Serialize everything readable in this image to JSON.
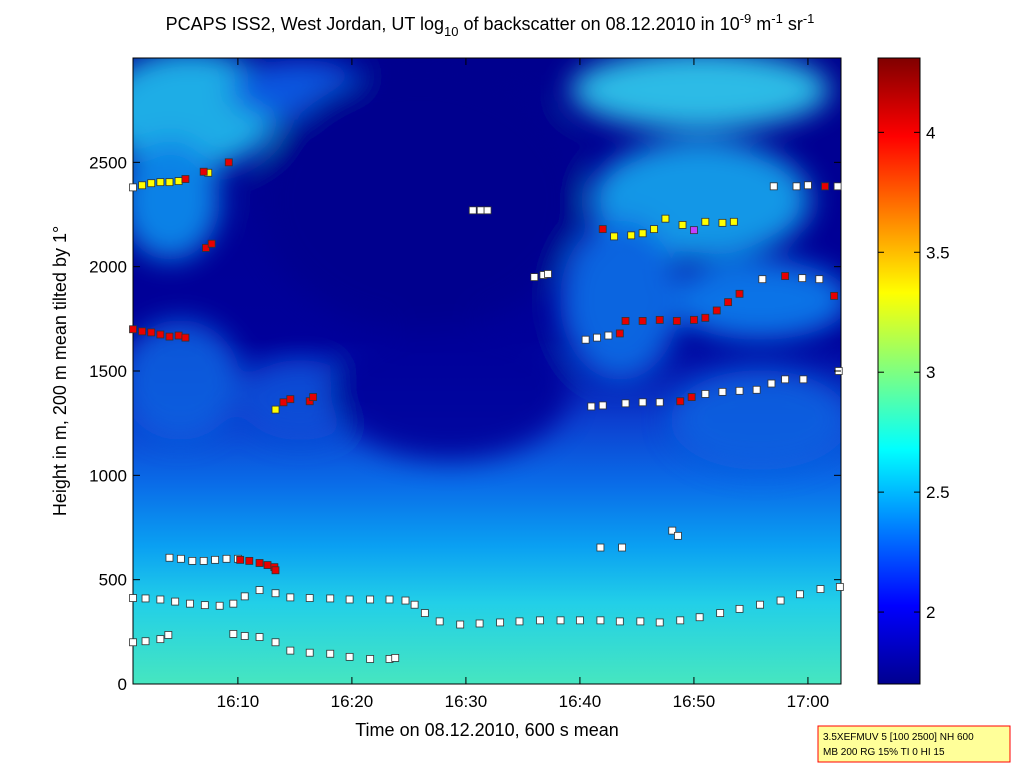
{
  "chart_data": {
    "type": "scatter",
    "title": [
      {
        "text": "PCAPS ISS2, West Jordan, UT log",
        "pos": "normal"
      },
      {
        "text": "10",
        "pos": "sub"
      },
      {
        "text": " of backscatter on 08.12.2010 in 10",
        "pos": "normal"
      },
      {
        "text": "-9",
        "pos": "sup"
      },
      {
        "text": " m",
        "pos": "normal"
      },
      {
        "text": "-1",
        "pos": "sup"
      },
      {
        "text": " sr",
        "pos": "normal"
      },
      {
        "text": "-1",
        "pos": "sup"
      }
    ],
    "xlabel": "Time on 08.12.2010, 600 s mean",
    "ylabel": "Height in m, 200 m mean tilted by 1°",
    "xlim": [
      960.8,
      1022.9
    ],
    "xticks": [
      {
        "value": 970,
        "label": "16:10"
      },
      {
        "value": 980,
        "label": "16:20"
      },
      {
        "value": 990,
        "label": "16:30"
      },
      {
        "value": 1000,
        "label": "16:40"
      },
      {
        "value": 1010,
        "label": "16:50"
      },
      {
        "value": 1020,
        "label": "17:00"
      }
    ],
    "ylim": [
      0,
      3000
    ],
    "yticks": [
      0,
      500,
      1000,
      1500,
      2000,
      2500
    ],
    "colorbar": {
      "colormap": "jet",
      "lim": [
        1.7,
        4.31
      ],
      "ticks": [
        2,
        2.5,
        3,
        3.5,
        4
      ]
    },
    "series": [
      {
        "color": "#ffffff",
        "x": [
          960.8,
          961.9,
          963.2,
          964.5,
          965.8,
          967.1,
          968.4,
          969.6,
          970.6,
          971.9,
          973.3,
          974.6,
          976.3,
          978.1,
          979.8,
          981.6,
          983.3,
          984.7,
          985.5,
          986.4,
          987.7,
          989.5,
          991.2,
          993.0,
          994.7,
          996.5,
          998.3,
          1000.0,
          1001.8,
          1003.5,
          1005.3,
          1007.0,
          1008.8,
          1010.5,
          1012.3,
          1014.0,
          1015.8,
          1017.6,
          1019.3,
          1021.1,
          1022.8,
          960.8,
          961.9,
          963.2,
          963.9,
          969.6,
          970.6,
          971.9,
          973.3,
          974.6,
          976.3,
          978.1,
          979.8,
          981.6,
          983.3,
          983.8,
          964.0,
          965.0,
          966.0,
          967.0,
          968.0,
          969.0,
          970.0,
          960.8,
          990.6,
          991.3,
          991.9,
          996.0,
          996.8,
          997.2,
          1001.0,
          1002.0,
          1004.0,
          1005.5,
          1007.0,
          1011.0,
          1012.5,
          1014.0,
          1015.5,
          1016.8,
          1018.0,
          1019.6,
          1000.5,
          1001.5,
          1002.5,
          1016.0,
          1019.5,
          1021.0,
          1017.0,
          1019.0,
          1020.0,
          1022.6,
          1001.8,
          1003.7,
          1008.1,
          1008.6,
          1022.7
        ],
        "y": [
          412,
          410,
          405,
          395,
          385,
          378,
          375,
          385,
          420,
          450,
          435,
          415,
          412,
          410,
          405,
          405,
          405,
          400,
          380,
          340,
          300,
          285,
          290,
          295,
          300,
          305,
          305,
          305,
          305,
          300,
          300,
          295,
          305,
          320,
          340,
          360,
          380,
          400,
          430,
          455,
          465,
          200,
          205,
          215,
          235,
          240,
          230,
          225,
          200,
          160,
          150,
          145,
          130,
          120,
          120,
          125,
          605,
          600,
          590,
          590,
          595,
          600,
          600,
          2380,
          2270,
          2270,
          2270,
          1950,
          1960,
          1965,
          1330,
          1335,
          1345,
          1350,
          1350,
          1390,
          1400,
          1405,
          1410,
          1440,
          1460,
          1460,
          1650,
          1660,
          1670,
          1940,
          1945,
          1940,
          2385,
          2385,
          2390,
          2385,
          654,
          654,
          735,
          710,
          1500
        ]
      },
      {
        "color": "#ffff00",
        "x": [
          961.6,
          962.4,
          963.2,
          964.0,
          964.8,
          967.4,
          973.3,
          1003.0,
          1004.5,
          1005.5,
          1006.5,
          1007.5,
          1009.0,
          1011.0,
          1012.5,
          1013.5
        ],
        "y": [
          2390,
          2400,
          2405,
          2405,
          2410,
          2450,
          1315,
          2145,
          2150,
          2160,
          2180,
          2230,
          2200,
          2215,
          2210,
          2215
        ]
      },
      {
        "color": "#e80000",
        "x": [
          970.2,
          971.0,
          971.9,
          972.6,
          973.2,
          973.3,
          974.0,
          974.6,
          976.3,
          976.6,
          960.8,
          961.6,
          962.4,
          963.2,
          964.0,
          964.8,
          965.4,
          965.4,
          967.0,
          969.2,
          967.2,
          967.7,
          1008.8,
          1009.8,
          1003.5,
          1004.0,
          1005.5,
          1007.0,
          1008.5,
          1010.0,
          1011.0,
          1012.0,
          1013.0,
          1014.0,
          1018.0,
          1002.0,
          1021.5,
          1022.3
        ],
        "y": [
          595,
          590,
          580,
          570,
          560,
          545,
          1350,
          1365,
          1355,
          1375,
          1700,
          1690,
          1685,
          1675,
          1665,
          1670,
          1660,
          2420,
          2455,
          2500,
          2090,
          2110,
          1355,
          1375,
          1680,
          1740,
          1740,
          1745,
          1740,
          1745,
          1755,
          1790,
          1830,
          1870,
          1955,
          2180,
          2385,
          1860
        ]
      },
      {
        "color": "#c040ff",
        "x": [
          1010.0
        ],
        "y": [
          2175
        ]
      }
    ],
    "annotations": [
      "3.5XEFMUV 5 [100 2500] NH 600",
      "MB 200 RG 15% TI 0 HI 15"
    ]
  }
}
